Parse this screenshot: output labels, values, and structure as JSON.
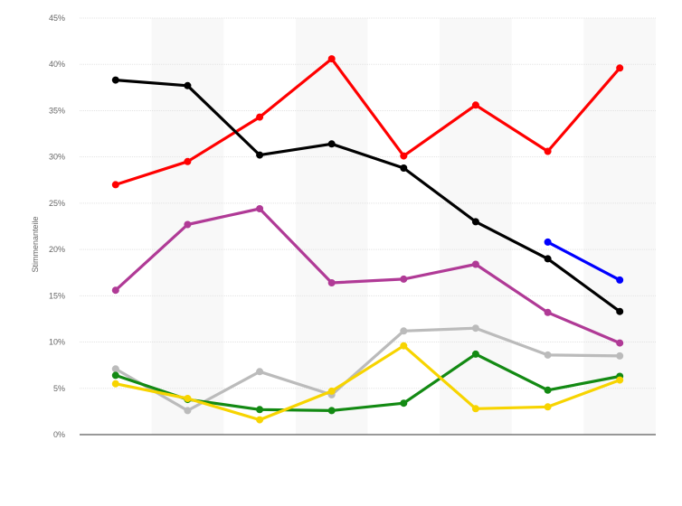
{
  "chart_data": {
    "type": "line",
    "title": "",
    "xlabel": "",
    "ylabel": "Stimmenanteile",
    "ylim": [
      0,
      45
    ],
    "yticks": [
      0,
      5,
      10,
      15,
      20,
      25,
      30,
      35,
      40,
      45
    ],
    "ytick_labels": [
      "0%",
      "5%",
      "10%",
      "15%",
      "20%",
      "25%",
      "30%",
      "35%",
      "40%",
      "45%"
    ],
    "x_count": 8,
    "grid": true,
    "legend": "none",
    "series": [
      {
        "color": "#ff0000",
        "values": [
          27.0,
          29.5,
          34.3,
          40.6,
          30.1,
          35.6,
          30.6,
          39.6
        ]
      },
      {
        "color": "#000000",
        "values": [
          38.3,
          37.7,
          30.2,
          31.4,
          28.8,
          23.0,
          19.0,
          13.3
        ]
      },
      {
        "color": "#0000ff",
        "values": [
          null,
          null,
          null,
          null,
          null,
          null,
          20.8,
          16.7
        ]
      },
      {
        "color": "#b03a96",
        "values": [
          15.6,
          22.7,
          24.4,
          16.4,
          16.8,
          18.4,
          13.2,
          9.9
        ]
      },
      {
        "color": "#bbbbbb",
        "values": [
          7.1,
          2.6,
          6.8,
          4.3,
          11.2,
          11.5,
          8.6,
          8.5
        ]
      },
      {
        "color": "#138a13",
        "values": [
          6.4,
          3.8,
          2.7,
          2.6,
          3.4,
          8.7,
          4.8,
          6.3
        ]
      },
      {
        "color": "#f7d400",
        "values": [
          5.5,
          3.9,
          1.6,
          4.7,
          9.6,
          2.8,
          3.0,
          5.9
        ]
      }
    ]
  }
}
